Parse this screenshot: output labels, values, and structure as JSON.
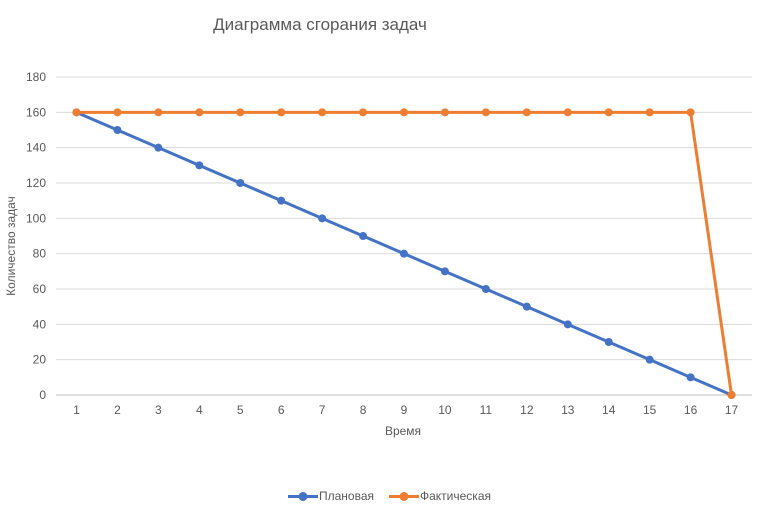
{
  "chart_data": {
    "type": "line",
    "title": "Диаграмма сгорания задач",
    "xlabel": "Время",
    "ylabel": "Количество задач",
    "categories": [
      1,
      2,
      3,
      4,
      5,
      6,
      7,
      8,
      9,
      10,
      11,
      12,
      13,
      14,
      15,
      16,
      17
    ],
    "series": [
      {
        "name": "Плановая",
        "color": "#4472C4",
        "marker": "circle",
        "values": [
          160,
          150,
          140,
          130,
          120,
          110,
          100,
          90,
          80,
          70,
          60,
          50,
          40,
          30,
          20,
          10,
          0
        ]
      },
      {
        "name": "Фактическая",
        "color": "#ED7D31",
        "marker": "circle",
        "values": [
          160,
          160,
          160,
          160,
          160,
          160,
          160,
          160,
          160,
          160,
          160,
          160,
          160,
          160,
          160,
          160,
          0
        ]
      }
    ],
    "ylim": [
      0,
      180
    ],
    "ytick_step": 20,
    "grid": true,
    "legend_position": "bottom"
  },
  "colors": {
    "background": "#FFFFFF",
    "gridline": "#D9D9D9",
    "axis_line": "#BFBFBF",
    "text": "#595959"
  }
}
